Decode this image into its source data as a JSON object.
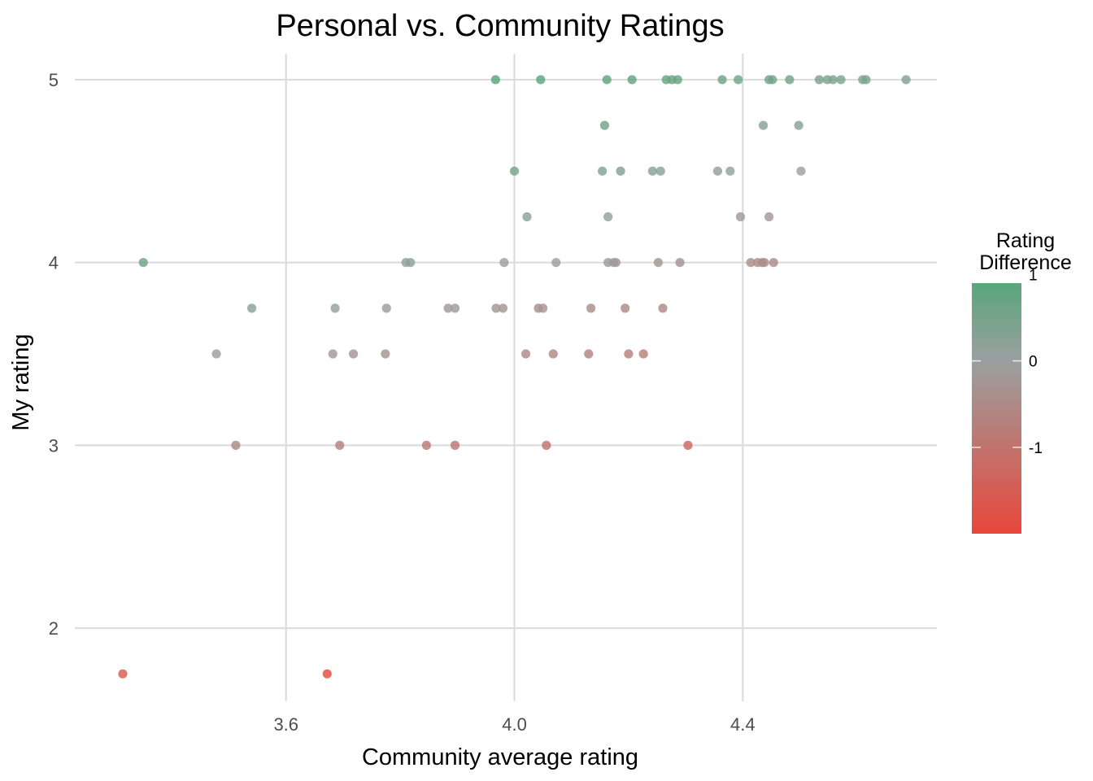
{
  "chart_data": {
    "type": "scatter",
    "title": "Personal vs. Community Ratings",
    "xlabel": "Community average rating",
    "ylabel": "My rating",
    "xlim": [
      3.23,
      4.74
    ],
    "ylim": [
      1.6,
      5.16
    ],
    "x_ticks": [
      3.6,
      4.0,
      4.4
    ],
    "x_tick_labels": [
      "3.6",
      "4.0",
      "4.4"
    ],
    "y_ticks": [
      2,
      3,
      4,
      5
    ],
    "y_tick_labels": [
      "2",
      "3",
      "4",
      "5"
    ],
    "grid": true,
    "legend": {
      "title_lines": [
        "Rating",
        "Difference"
      ],
      "placement": "right",
      "range": [
        -2.0,
        0.9
      ],
      "ticks": [
        1,
        0,
        -1
      ],
      "tick_labels": [
        "1",
        "0",
        "-1"
      ],
      "colors": {
        "low": "#e8473a",
        "mid": "#9aa0a0",
        "high": "#5aa67b"
      }
    },
    "points": [
      {
        "x": 3.967,
        "y": 5.0
      },
      {
        "x": 4.046,
        "y": 5.0
      },
      {
        "x": 4.162,
        "y": 5.0
      },
      {
        "x": 4.206,
        "y": 5.0
      },
      {
        "x": 4.266,
        "y": 5.0
      },
      {
        "x": 4.276,
        "y": 5.0
      },
      {
        "x": 4.286,
        "y": 5.0
      },
      {
        "x": 4.364,
        "y": 5.0
      },
      {
        "x": 4.392,
        "y": 5.0
      },
      {
        "x": 4.446,
        "y": 5.0
      },
      {
        "x": 4.452,
        "y": 5.0
      },
      {
        "x": 4.482,
        "y": 5.0
      },
      {
        "x": 4.534,
        "y": 5.0
      },
      {
        "x": 4.548,
        "y": 5.0
      },
      {
        "x": 4.558,
        "y": 5.0
      },
      {
        "x": 4.572,
        "y": 5.0
      },
      {
        "x": 4.61,
        "y": 5.0
      },
      {
        "x": 4.616,
        "y": 5.0
      },
      {
        "x": 4.686,
        "y": 5.0
      },
      {
        "x": 4.158,
        "y": 4.75
      },
      {
        "x": 4.436,
        "y": 4.75
      },
      {
        "x": 4.498,
        "y": 4.75
      },
      {
        "x": 4.0,
        "y": 4.5
      },
      {
        "x": 4.154,
        "y": 4.5
      },
      {
        "x": 4.186,
        "y": 4.5
      },
      {
        "x": 4.242,
        "y": 4.5
      },
      {
        "x": 4.256,
        "y": 4.5
      },
      {
        "x": 4.356,
        "y": 4.5
      },
      {
        "x": 4.378,
        "y": 4.5
      },
      {
        "x": 4.502,
        "y": 4.5
      },
      {
        "x": 4.022,
        "y": 4.25
      },
      {
        "x": 4.164,
        "y": 4.25
      },
      {
        "x": 4.396,
        "y": 4.25
      },
      {
        "x": 4.446,
        "y": 4.25
      },
      {
        "x": 3.35,
        "y": 4.0
      },
      {
        "x": 3.81,
        "y": 4.0
      },
      {
        "x": 3.818,
        "y": 4.0
      },
      {
        "x": 3.982,
        "y": 4.0
      },
      {
        "x": 4.073,
        "y": 4.0
      },
      {
        "x": 4.164,
        "y": 4.0
      },
      {
        "x": 4.174,
        "y": 4.0
      },
      {
        "x": 4.178,
        "y": 4.0
      },
      {
        "x": 4.252,
        "y": 4.0
      },
      {
        "x": 4.29,
        "y": 4.0
      },
      {
        "x": 4.414,
        "y": 4.0
      },
      {
        "x": 4.426,
        "y": 4.0
      },
      {
        "x": 4.434,
        "y": 4.0
      },
      {
        "x": 4.438,
        "y": 4.0
      },
      {
        "x": 4.454,
        "y": 4.0
      },
      {
        "x": 3.54,
        "y": 3.75
      },
      {
        "x": 3.686,
        "y": 3.75
      },
      {
        "x": 3.776,
        "y": 3.75
      },
      {
        "x": 3.884,
        "y": 3.75
      },
      {
        "x": 3.896,
        "y": 3.75
      },
      {
        "x": 3.968,
        "y": 3.75
      },
      {
        "x": 3.98,
        "y": 3.75
      },
      {
        "x": 4.042,
        "y": 3.75
      },
      {
        "x": 4.05,
        "y": 3.75
      },
      {
        "x": 4.134,
        "y": 3.75
      },
      {
        "x": 4.194,
        "y": 3.75
      },
      {
        "x": 4.26,
        "y": 3.75
      },
      {
        "x": 3.478,
        "y": 3.5
      },
      {
        "x": 3.682,
        "y": 3.5
      },
      {
        "x": 3.718,
        "y": 3.5
      },
      {
        "x": 3.774,
        "y": 3.5
      },
      {
        "x": 4.02,
        "y": 3.5
      },
      {
        "x": 4.068,
        "y": 3.5
      },
      {
        "x": 4.13,
        "y": 3.5
      },
      {
        "x": 4.2,
        "y": 3.5
      },
      {
        "x": 4.226,
        "y": 3.5
      },
      {
        "x": 3.512,
        "y": 3.0
      },
      {
        "x": 3.694,
        "y": 3.0
      },
      {
        "x": 3.846,
        "y": 3.0
      },
      {
        "x": 3.896,
        "y": 3.0
      },
      {
        "x": 4.056,
        "y": 3.0
      },
      {
        "x": 4.304,
        "y": 3.0
      },
      {
        "x": 3.314,
        "y": 1.75
      },
      {
        "x": 3.672,
        "y": 1.75
      }
    ]
  }
}
